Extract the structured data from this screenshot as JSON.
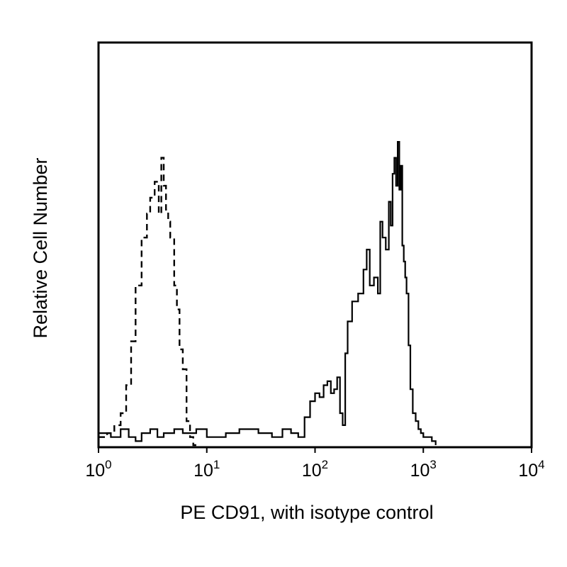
{
  "chart_data": {
    "type": "line",
    "xlabel": "PE CD91, with isotype control",
    "ylabel": "Relative Cell Number",
    "x_scale": "log",
    "xlim": [
      1,
      10000
    ],
    "ylim": [
      0,
      100
    ],
    "x_ticks": [
      {
        "base": "10",
        "exp": "0",
        "value": 1
      },
      {
        "base": "10",
        "exp": "1",
        "value": 10
      },
      {
        "base": "10",
        "exp": "2",
        "value": 100
      },
      {
        "base": "10",
        "exp": "3",
        "value": 1000
      },
      {
        "base": "10",
        "exp": "4",
        "value": 10000
      }
    ],
    "grid": false,
    "legend": "none",
    "series": [
      {
        "style": "dashed",
        "color": "#000000",
        "x": [
          1.0,
          1.2,
          1.4,
          1.6,
          1.8,
          2.0,
          2.2,
          2.5,
          2.8,
          3.0,
          3.3,
          3.6,
          3.8,
          4.0,
          4.2,
          4.4,
          4.6,
          5.0,
          5.3,
          5.6,
          6.0,
          6.5,
          7.0,
          7.5,
          8.0
        ],
        "y": [
          2,
          3,
          5,
          8,
          15,
          26,
          40,
          52,
          58,
          62,
          66,
          58,
          72,
          65,
          59,
          56,
          52,
          40,
          34,
          24,
          19,
          6,
          2,
          0,
          0
        ]
      },
      {
        "style": "solid",
        "color": "#000000",
        "x": [
          1.0,
          1.3,
          1.6,
          1.9,
          2.2,
          2.5,
          3.0,
          3.5,
          4.0,
          5.0,
          6.0,
          8.0,
          10,
          15,
          20,
          30,
          40,
          50,
          60,
          70,
          80,
          90,
          100,
          110,
          120,
          130,
          140,
          150,
          160,
          170,
          180,
          190,
          200,
          220,
          250,
          280,
          300,
          320,
          350,
          380,
          400,
          420,
          450,
          480,
          500,
          520,
          540,
          560,
          580,
          600,
          620,
          640,
          660,
          680,
          700,
          730,
          760,
          800,
          850,
          900,
          950,
          1000,
          1100,
          1200,
          1300
        ],
        "y": [
          3,
          2,
          4,
          2,
          1,
          3,
          4,
          2,
          3,
          4,
          3,
          4,
          2,
          3,
          4,
          3,
          2,
          4,
          3,
          2,
          7,
          11,
          13,
          12,
          15,
          16,
          13,
          14,
          17,
          8,
          5,
          23,
          31,
          36,
          38,
          44,
          49,
          40,
          42,
          38,
          56,
          52,
          49,
          61,
          55,
          68,
          72,
          65,
          76,
          64,
          70,
          50,
          46,
          42,
          38,
          25,
          14,
          8,
          6,
          4,
          3,
          2,
          2,
          1,
          0
        ]
      }
    ]
  }
}
